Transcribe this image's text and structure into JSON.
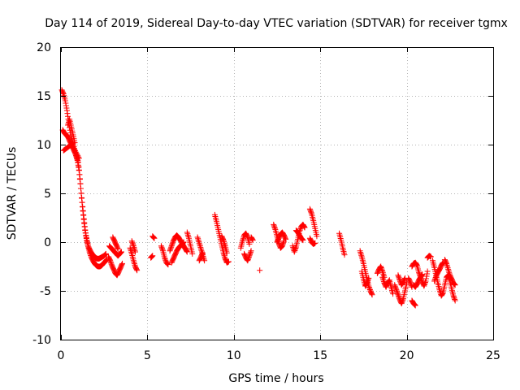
{
  "chart_data": {
    "type": "scatter",
    "title": "Day 114 of 2019, Sidereal Day-to-day VTEC variation (SDTVAR) for receiver tgmx",
    "xlabel": "GPS time / hours",
    "ylabel": "SDTVAR / TECUs",
    "xlim": [
      0,
      25
    ],
    "ylim": [
      -10,
      20
    ],
    "x_ticks": [
      "0",
      "5",
      "10",
      "15",
      "20",
      "25"
    ],
    "y_ticks": [
      "-10",
      "-5",
      "0",
      "5",
      "10",
      "15",
      "20"
    ],
    "grid": true,
    "marker": "plus",
    "color": "#ff0000",
    "series": [
      {
        "name": "SDTVAR",
        "segments": [
          {
            "x": [
              0.05,
              0.15,
              0.25,
              0.35,
              0.45,
              0.55,
              0.65,
              0.75,
              0.85,
              0.95,
              1.05,
              1.15,
              1.25,
              1.35,
              1.45,
              1.55,
              1.65,
              1.75,
              1.85,
              1.95,
              2.05,
              2.15,
              2.25,
              2.35,
              2.45,
              2.55,
              2.65
            ],
            "y": [
              15.6,
              15.2,
              14.5,
              13.5,
              12.3,
              11.2,
              10.4,
              9.8,
              9.0,
              8.4,
              7.4,
              5.5,
              3.6,
              1.9,
              0.6,
              -0.3,
              -1.0,
              -1.5,
              -1.9,
              -2.2,
              -2.4,
              -2.5,
              -2.5,
              -2.4,
              -2.2,
              -2.0,
              -1.8
            ]
          },
          {
            "x": [
              0.1,
              0.2,
              0.3,
              0.4,
              0.5,
              0.6,
              0.7,
              0.8,
              0.9,
              1.0,
              1.1,
              1.2,
              1.3,
              1.4,
              1.5,
              1.6,
              1.7,
              1.8,
              1.9,
              2.0,
              2.1,
              2.2,
              2.3,
              2.4,
              2.5,
              2.6
            ],
            "y": [
              11.5,
              11.2,
              11.0,
              10.8,
              10.4,
              10.0,
              9.6,
              9.2,
              8.8,
              8.2,
              6.5,
              4.5,
              2.8,
              1.2,
              0.2,
              -0.5,
              -0.9,
              -1.2,
              -1.4,
              -1.6,
              -1.7,
              -1.7,
              -1.6,
              -1.5,
              -1.4,
              -1.2
            ]
          },
          {
            "x": [
              0.15,
              0.3,
              0.45,
              0.6,
              0.75,
              0.9,
              1.05
            ],
            "y": [
              9.4,
              9.6,
              9.8,
              10.0,
              9.6,
              9.1,
              8.6
            ]
          },
          {
            "x": [
              0.4,
              0.5,
              0.6,
              0.7,
              0.8
            ],
            "y": [
              12.0,
              12.6,
              11.8,
              11.0,
              10.2
            ]
          },
          {
            "x": [
              2.75,
              2.85,
              2.95,
              3.05,
              3.15,
              3.25,
              3.35,
              3.45,
              3.55
            ],
            "y": [
              -1.5,
              -1.9,
              -2.4,
              -2.8,
              -3.2,
              -3.4,
              -3.0,
              -2.6,
              -2.2
            ]
          },
          {
            "x": [
              2.8,
              2.9,
              3.0,
              3.1,
              3.2,
              3.3,
              3.4,
              3.5
            ],
            "y": [
              -0.4,
              -0.6,
              -0.8,
              -1.0,
              -1.2,
              -1.4,
              -1.2,
              -1.0
            ]
          },
          {
            "x": [
              3.0,
              3.1,
              3.2,
              3.3
            ],
            "y": [
              0.5,
              0.1,
              -0.3,
              -0.7
            ]
          },
          {
            "x": [
              4.0,
              4.1,
              4.2,
              4.3,
              4.4
            ],
            "y": [
              -0.6,
              -1.2,
              -1.9,
              -2.5,
              -2.9
            ]
          },
          {
            "x": [
              4.1,
              4.2,
              4.3
            ],
            "y": [
              0.1,
              -0.4,
              -1.0
            ]
          },
          {
            "x": [
              5.2,
              5.3
            ],
            "y": [
              -1.6,
              -1.4
            ]
          },
          {
            "x": [
              5.3,
              5.4
            ],
            "y": [
              0.6,
              0.4
            ]
          },
          {
            "x": [
              5.8,
              5.9,
              6.0,
              6.1,
              6.2
            ],
            "y": [
              -0.4,
              -0.9,
              -1.6,
              -2.1,
              -2.3
            ]
          },
          {
            "x": [
              6.3,
              6.4,
              6.5,
              6.6,
              6.7,
              6.8,
              6.9,
              7.0,
              7.1,
              7.2,
              7.3
            ],
            "y": [
              -0.9,
              -0.4,
              0.1,
              0.5,
              0.7,
              0.5,
              0.2,
              -0.1,
              -0.4,
              -0.7,
              -1.0
            ]
          },
          {
            "x": [
              6.4,
              6.5,
              6.6,
              6.7,
              6.8,
              6.9,
              7.0,
              7.1
            ],
            "y": [
              -2.1,
              -1.7,
              -1.3,
              -0.9,
              -0.6,
              -0.4,
              -0.2,
              0.0
            ]
          },
          {
            "x": [
              7.3,
              7.4,
              7.5,
              7.6
            ],
            "y": [
              1.0,
              0.4,
              -0.4,
              -1.2
            ]
          },
          {
            "x": [
              7.9,
              8.0,
              8.1,
              8.2,
              8.3
            ],
            "y": [
              0.5,
              -0.1,
              -0.7,
              -1.3,
              -1.9
            ]
          },
          {
            "x": [
              8.0,
              8.1,
              8.2
            ],
            "y": [
              -1.9,
              -1.5,
              -1.1
            ]
          },
          {
            "x": [
              8.9,
              9.0,
              9.1,
              9.2,
              9.3,
              9.4,
              9.5,
              9.6,
              9.7
            ],
            "y": [
              2.8,
              2.1,
              1.3,
              0.5,
              -0.3,
              -1.1,
              -1.7,
              -2.1,
              -2.0
            ]
          },
          {
            "x": [
              9.3,
              9.4,
              9.5,
              9.6
            ],
            "y": [
              0.6,
              0.2,
              -0.4,
              -1.1
            ]
          },
          {
            "x": [
              10.4,
              10.5,
              10.6,
              10.7,
              10.8,
              10.9
            ],
            "y": [
              -0.6,
              0.1,
              0.7,
              0.9,
              0.5,
              -0.2
            ]
          },
          {
            "x": [
              10.6,
              10.7,
              10.8,
              10.9,
              11.0
            ],
            "y": [
              -1.2,
              -1.6,
              -1.9,
              -1.4,
              -0.9
            ]
          },
          {
            "x": [
              11.0,
              11.1
            ],
            "y": [
              0.5,
              0.2
            ]
          },
          {
            "x": [
              11.5
            ],
            "y": [
              -2.9
            ]
          },
          {
            "x": [
              12.3,
              12.4,
              12.5,
              12.6,
              12.7,
              12.8,
              12.9
            ],
            "y": [
              1.8,
              1.3,
              0.6,
              -0.1,
              -0.6,
              -0.4,
              0.1
            ]
          },
          {
            "x": [
              12.5,
              12.6,
              12.7,
              12.8,
              12.9,
              13.0
            ],
            "y": [
              0.0,
              0.4,
              0.8,
              1.0,
              0.7,
              0.3
            ]
          },
          {
            "x": [
              13.4,
              13.5,
              13.6,
              13.7,
              13.8,
              13.9,
              14.0,
              14.1
            ],
            "y": [
              -0.4,
              -1.0,
              -0.5,
              0.3,
              1.1,
              1.6,
              1.8,
              1.5
            ]
          },
          {
            "x": [
              13.6,
              13.7,
              13.8,
              13.9,
              14.0
            ],
            "y": [
              1.2,
              1.0,
              0.7,
              0.4,
              0.2
            ]
          },
          {
            "x": [
              14.4,
              14.5,
              14.6,
              14.7,
              14.8
            ],
            "y": [
              3.4,
              2.9,
              2.2,
              1.4,
              0.6
            ]
          },
          {
            "x": [
              14.4,
              14.5,
              14.6,
              14.7
            ],
            "y": [
              0.4,
              0.0,
              -0.2,
              -0.1
            ]
          },
          {
            "x": [
              16.1,
              16.2,
              16.3,
              16.4
            ],
            "y": [
              0.9,
              0.2,
              -0.6,
              -1.3
            ]
          },
          {
            "x": [
              17.3,
              17.4,
              17.5,
              17.6,
              17.7,
              17.8,
              17.9,
              18.0
            ],
            "y": [
              -0.9,
              -1.5,
              -2.2,
              -3.0,
              -3.8,
              -4.5,
              -5.0,
              -5.4
            ]
          },
          {
            "x": [
              17.4,
              17.5,
              17.6,
              17.7,
              17.8
            ],
            "y": [
              -3.0,
              -3.8,
              -4.5,
              -4.2,
              -3.7
            ]
          },
          {
            "x": [
              18.3,
              18.4,
              18.5,
              18.6,
              18.7
            ],
            "y": [
              -3.2,
              -2.8,
              -2.5,
              -3.0,
              -3.6
            ]
          },
          {
            "x": [
              18.6,
              18.7,
              18.8,
              18.9,
              19.0,
              19.1,
              19.2
            ],
            "y": [
              -3.6,
              -4.2,
              -4.6,
              -4.2,
              -3.9,
              -4.6,
              -5.3
            ]
          },
          {
            "x": [
              19.3,
              19.4,
              19.5,
              19.6,
              19.7,
              19.8,
              19.9,
              20.0
            ],
            "y": [
              -4.4,
              -4.9,
              -5.4,
              -5.9,
              -6.3,
              -5.8,
              -5.0,
              -4.2
            ]
          },
          {
            "x": [
              19.5,
              19.6,
              19.7,
              19.8,
              19.9
            ],
            "y": [
              -3.4,
              -3.9,
              -4.4,
              -4.1,
              -3.7
            ]
          },
          {
            "x": [
              20.1,
              20.2,
              20.3
            ],
            "y": [
              -3.7,
              -4.1,
              -4.6
            ]
          },
          {
            "x": [
              20.3,
              20.4,
              20.5
            ],
            "y": [
              -6.0,
              -6.3,
              -6.5
            ]
          },
          {
            "x": [
              20.3,
              20.4,
              20.5,
              20.6,
              20.7,
              20.8,
              20.9,
              21.0,
              21.1,
              21.2
            ],
            "y": [
              -2.5,
              -2.2,
              -2.1,
              -2.4,
              -3.1,
              -3.6,
              -4.1,
              -4.5,
              -4.0,
              -3.0
            ]
          },
          {
            "x": [
              20.4,
              20.5,
              20.6,
              20.7,
              20.8,
              20.9
            ],
            "y": [
              -4.4,
              -4.6,
              -4.3,
              -3.9,
              -3.6,
              -3.3
            ]
          },
          {
            "x": [
              21.2,
              21.3,
              21.4
            ],
            "y": [
              -1.6,
              -1.4,
              -1.5
            ]
          },
          {
            "x": [
              21.5,
              21.6,
              21.7,
              21.8,
              21.9,
              22.0,
              22.1,
              22.2,
              22.3,
              22.4,
              22.5,
              22.6,
              22.7,
              22.8
            ],
            "y": [
              -1.9,
              -2.6,
              -3.4,
              -4.2,
              -4.9,
              -5.5,
              -5.2,
              -4.4,
              -3.6,
              -3.4,
              -4.0,
              -4.8,
              -5.5,
              -6.0
            ]
          },
          {
            "x": [
              21.6,
              21.7,
              21.8,
              21.9,
              22.0,
              22.1
            ],
            "y": [
              -4.0,
              -3.5,
              -3.1,
              -2.8,
              -2.4,
              -2.1
            ]
          },
          {
            "x": [
              22.2,
              22.3,
              22.4,
              22.5,
              22.6,
              22.7,
              22.8
            ],
            "y": [
              -1.8,
              -2.2,
              -2.8,
              -3.4,
              -3.8,
              -4.2,
              -4.4
            ]
          }
        ]
      }
    ]
  }
}
